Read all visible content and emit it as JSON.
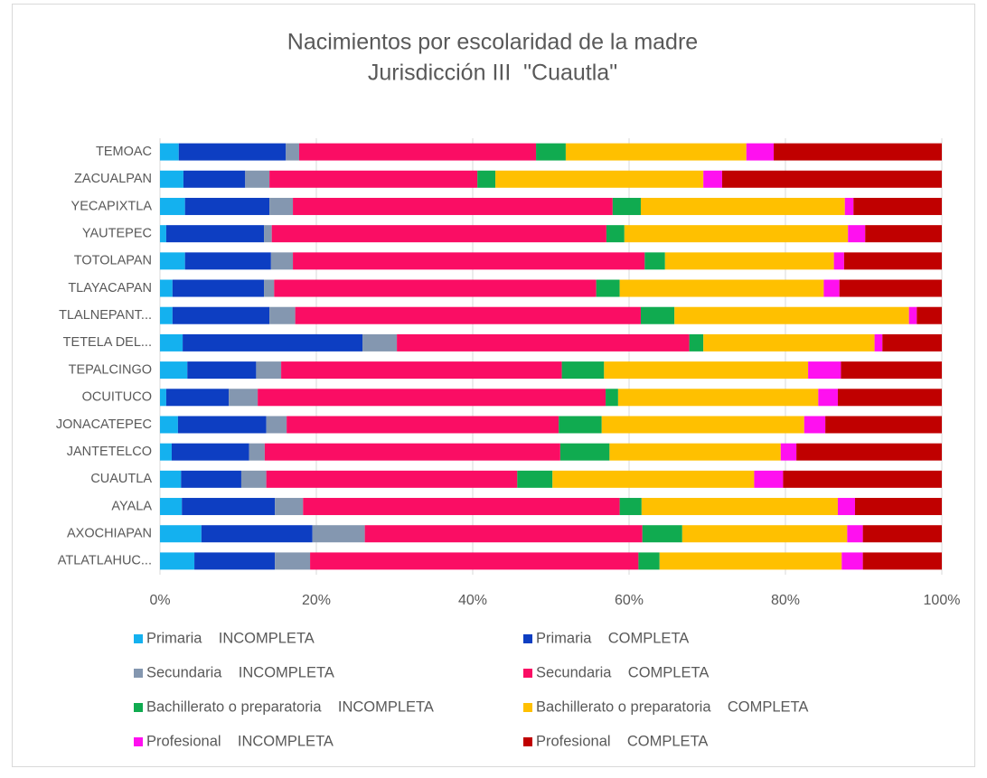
{
  "chart_data": {
    "type": "stacked_barh",
    "title": [
      "Nacimientos por escolaridad de la madre",
      "Jurisdicción III  \"Cuautla\""
    ],
    "categories": [
      "TEMOAC",
      "ZACUALPAN",
      "YECAPIXTLA",
      "YAUTEPEC",
      "TOTOLAPAN",
      "TLAYACAPAN",
      "TLALNEPANT...",
      "TETELA DEL...",
      "TEPALCINGO",
      "OCUITUCO",
      "JONACATEPEC",
      "JANTETELCO",
      "CUAUTLA",
      "AYALA",
      "AXOCHIAPAN",
      "ATLATLAHUC..."
    ],
    "series": [
      {
        "name": "Primaria    INCOMPLETA",
        "color": "#14b1ef",
        "values": [
          2.4,
          3.0,
          3.2,
          0.8,
          3.2,
          1.6,
          1.6,
          2.9,
          3.5,
          0.8,
          2.3,
          1.5,
          2.7,
          2.8,
          5.3,
          4.4
        ]
      },
      {
        "name": "Primaria    COMPLETA",
        "color": "#0d3ec2",
        "values": [
          13.7,
          7.9,
          10.8,
          12.5,
          11.0,
          11.7,
          12.4,
          23.0,
          8.8,
          8.0,
          11.3,
          9.9,
          7.7,
          11.9,
          14.2,
          10.3
        ]
      },
      {
        "name": "Secundaria    INCOMPLETA",
        "color": "#8497b0",
        "values": [
          1.7,
          3.1,
          3.0,
          1.0,
          2.8,
          1.3,
          3.3,
          4.4,
          3.2,
          3.7,
          2.6,
          2.0,
          3.2,
          3.6,
          6.7,
          4.5
        ]
      },
      {
        "name": "Secundaria    COMPLETA",
        "color": "#fa0d64",
        "values": [
          30.3,
          26.6,
          40.9,
          42.8,
          45.0,
          41.2,
          44.2,
          37.4,
          35.9,
          44.5,
          34.8,
          37.8,
          32.1,
          40.5,
          35.5,
          42.0
        ]
      },
      {
        "name": "Bachillerato o preparatoria    INCOMPLETA",
        "color": "#10ab50",
        "values": [
          3.8,
          2.3,
          3.6,
          2.3,
          2.6,
          3.0,
          4.3,
          1.8,
          5.4,
          1.6,
          5.5,
          6.3,
          4.5,
          2.8,
          5.1,
          2.7
        ]
      },
      {
        "name": "Bachillerato o preparatoria    COMPLETA",
        "color": "#ffc000",
        "values": [
          23.1,
          26.6,
          26.1,
          28.6,
          21.6,
          26.1,
          30.0,
          21.9,
          26.1,
          25.6,
          25.9,
          21.9,
          25.8,
          25.1,
          21.1,
          23.3
        ]
      },
      {
        "name": "Profesional    INCOMPLETA",
        "color": "#ff10f0",
        "values": [
          3.5,
          2.4,
          1.1,
          2.2,
          1.3,
          2.0,
          1.0,
          1.0,
          4.2,
          2.5,
          2.7,
          2.0,
          3.7,
          2.2,
          2.0,
          2.7
        ]
      },
      {
        "name": "Profesional    COMPLETA",
        "color": "#c00000",
        "values": [
          21.5,
          28.1,
          11.3,
          9.8,
          12.5,
          13.1,
          3.2,
          7.6,
          12.9,
          13.3,
          14.9,
          18.6,
          20.3,
          11.1,
          10.1,
          10.1
        ]
      }
    ],
    "xlim": [
      0,
      100
    ],
    "xticks": [
      {
        "value": 0,
        "label": "0%"
      },
      {
        "value": 20,
        "label": "20%"
      },
      {
        "value": 40,
        "label": "40%"
      },
      {
        "value": 60,
        "label": "60%"
      },
      {
        "value": 80,
        "label": "80%"
      },
      {
        "value": 100,
        "label": "100%"
      }
    ],
    "grid": true
  }
}
